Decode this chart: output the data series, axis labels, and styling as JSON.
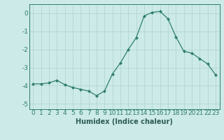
{
  "x": [
    0,
    1,
    2,
    3,
    4,
    5,
    6,
    7,
    8,
    9,
    10,
    11,
    12,
    13,
    14,
    15,
    16,
    17,
    18,
    19,
    20,
    21,
    22,
    23
  ],
  "y": [
    -3.9,
    -3.9,
    -3.85,
    -3.7,
    -3.95,
    -4.1,
    -4.2,
    -4.3,
    -4.55,
    -4.3,
    -3.35,
    -2.75,
    -2.0,
    -1.35,
    -0.15,
    0.05,
    0.1,
    -0.3,
    -1.3,
    -2.1,
    -2.2,
    -2.5,
    -2.8,
    -3.4
  ],
  "line_color": "#2e7d6e",
  "marker": "D",
  "marker_size": 2.2,
  "bg_color": "#cceae7",
  "grid_color": "#aed4d0",
  "xlabel": "Humidex (Indice chaleur)",
  "xlim": [
    -0.5,
    23.5
  ],
  "ylim": [
    -5.3,
    0.5
  ],
  "yticks": [
    0,
    -1,
    -2,
    -3,
    -4,
    -5
  ],
  "xtick_labels": [
    "0",
    "1",
    "2",
    "3",
    "4",
    "5",
    "6",
    "7",
    "8",
    "9",
    "10",
    "11",
    "12",
    "13",
    "14",
    "15",
    "16",
    "17",
    "18",
    "19",
    "20",
    "21",
    "22",
    "23"
  ],
  "xlabel_fontsize": 7,
  "tick_fontsize": 6.5
}
